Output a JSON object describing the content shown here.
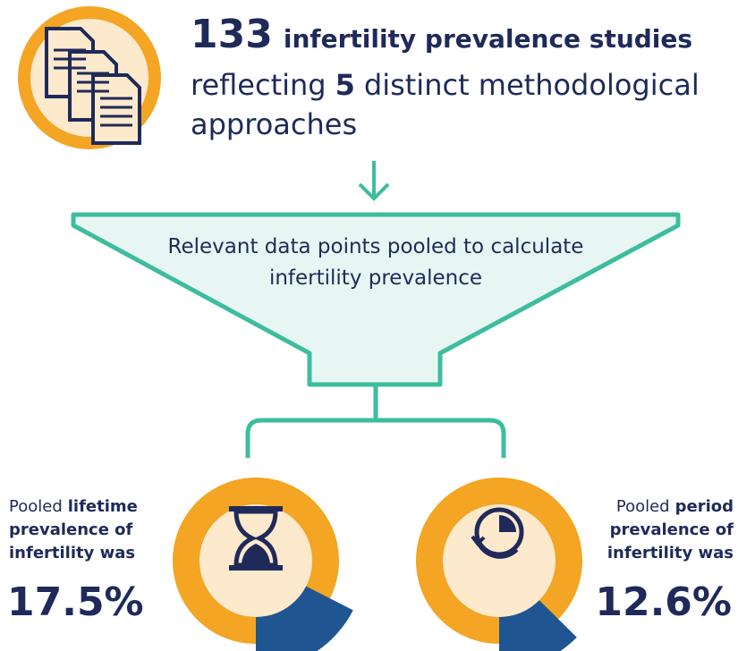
{
  "header": {
    "count": "133",
    "count_label": "infertility prevalence studies",
    "line2_lead": "reflecting",
    "approach_count": "5",
    "line2_tail": "distinct methodological",
    "line3": "approaches"
  },
  "funnel": {
    "lines": [
      "Relevant data points pooled to calculate",
      "infertility prevalence"
    ]
  },
  "results": [
    {
      "lead": "Pooled",
      "emphasis": [
        "lifetime",
        "prevalence of",
        "infertility was"
      ],
      "value": 17.5,
      "label": "17.5%"
    },
    {
      "lead": "Pooled",
      "emphasis": [
        "period",
        "prevalence of",
        "infertility was"
      ],
      "value": 12.6,
      "label": "12.6%"
    }
  ]
}
